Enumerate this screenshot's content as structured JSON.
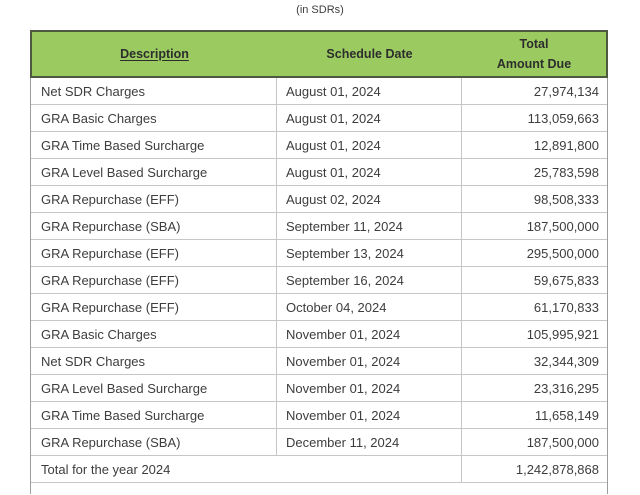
{
  "page": {
    "caption": "(in SDRs)"
  },
  "table": {
    "header": {
      "description": "Description",
      "schedule_date": "Schedule Date",
      "amount_line1": "Total",
      "amount_line2": "Amount Due"
    },
    "rows": [
      {
        "description": "Net SDR Charges",
        "date": "August 01, 2024",
        "amount": "27,974,134"
      },
      {
        "description": "GRA Basic Charges",
        "date": "August 01, 2024",
        "amount": "113,059,663"
      },
      {
        "description": "GRA Time Based Surcharge",
        "date": "August 01, 2024",
        "amount": "12,891,800"
      },
      {
        "description": "GRA Level Based Surcharge",
        "date": "August 01, 2024",
        "amount": "25,783,598"
      },
      {
        "description": "GRA Repurchase (EFF)",
        "date": "August 02, 2024",
        "amount": "98,508,333"
      },
      {
        "description": "GRA Repurchase (SBA)",
        "date": "September 11, 2024",
        "amount": "187,500,000"
      },
      {
        "description": "GRA Repurchase (EFF)",
        "date": "September 13, 2024",
        "amount": "295,500,000"
      },
      {
        "description": "GRA Repurchase (EFF)",
        "date": "September 16, 2024",
        "amount": "59,675,833"
      },
      {
        "description": "GRA Repurchase (EFF)",
        "date": "October 04, 2024",
        "amount": "61,170,833"
      },
      {
        "description": "GRA Basic Charges",
        "date": "November 01, 2024",
        "amount": "105,995,921"
      },
      {
        "description": "Net SDR Charges",
        "date": "November 01, 2024",
        "amount": "32,344,309"
      },
      {
        "description": "GRA Level Based Surcharge",
        "date": "November 01, 2024",
        "amount": "23,316,295"
      },
      {
        "description": "GRA Time Based Surcharge",
        "date": "November 01, 2024",
        "amount": "11,658,149"
      },
      {
        "description": "GRA Repurchase (SBA)",
        "date": "December 11, 2024",
        "amount": "187,500,000"
      }
    ],
    "total_row": {
      "label": "Total for the year 2024",
      "amount": "1,242,878,868"
    },
    "colors": {
      "header_bg": "#9BCB60",
      "header_border": "#4D5A40",
      "grid_line": "#C6C6C6",
      "outer_border": "#9C9C9C",
      "text": "#3D3D3D"
    }
  }
}
